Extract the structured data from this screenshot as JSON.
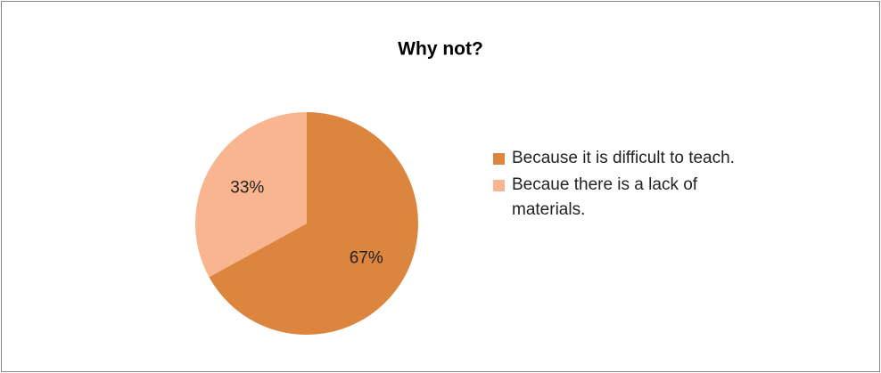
{
  "chart_data": {
    "type": "pie",
    "title": "Why not?",
    "categories": [
      "Because it is difficult to teach.",
      "Becaue there is a lack of materials."
    ],
    "values": [
      67,
      33
    ],
    "value_labels": [
      "67%",
      "33%"
    ],
    "colors": [
      "#dc853f",
      "#f8b58f"
    ],
    "legend": "right"
  }
}
